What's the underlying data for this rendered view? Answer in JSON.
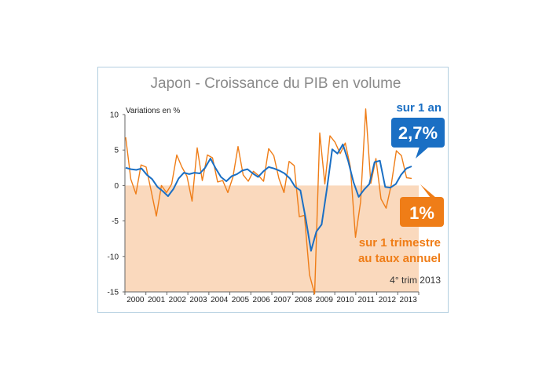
{
  "colors": {
    "annual": "#1a6fc4",
    "quarterly": "#ef7d17",
    "negative_fill": "#fad9bd",
    "frame": "#b3cfe0"
  },
  "chart_data": {
    "type": "line",
    "title": "Japon - Croissance du PIB en volume",
    "ylabel": "Variations en %",
    "xlabel": "",
    "ylim": [
      -15,
      10
    ],
    "yticks": [
      10,
      5,
      0,
      -5,
      -10,
      -15
    ],
    "years": [
      "2000",
      "2001",
      "2002",
      "2003",
      "2004",
      "2005",
      "2006",
      "2007",
      "2008",
      "2009",
      "2010",
      "2011",
      "2012",
      "2013"
    ],
    "grid": false,
    "series": [
      {
        "name": "sur 1 an",
        "values": [
          2.5,
          2.3,
          2.2,
          2.4,
          1.5,
          0.9,
          -0.2,
          -0.8,
          -1.5,
          -0.5,
          1.0,
          1.8,
          1.6,
          1.8,
          1.7,
          2.5,
          3.8,
          2.4,
          1.2,
          0.6,
          1.3,
          1.6,
          2.1,
          2.3,
          1.7,
          1.2,
          2.0,
          2.6,
          2.4,
          2.1,
          1.7,
          1.0,
          -0.2,
          -0.7,
          -4.7,
          -9.2,
          -6.5,
          -5.5,
          -0.5,
          5.1,
          4.5,
          5.8,
          3.5,
          0.5,
          -1.6,
          -0.6,
          0.2,
          3.3,
          3.5,
          -0.2,
          -0.3,
          0.2,
          1.5,
          2.4,
          2.7
        ]
      },
      {
        "name": "sur 1 trimestre au taux annuel",
        "values": [
          6.8,
          0.9,
          -1.2,
          2.9,
          2.6,
          -0.8,
          -4.3,
          0.0,
          -1.0,
          0.2,
          4.3,
          2.6,
          1.3,
          -2.2,
          5.3,
          0.7,
          4.3,
          3.9,
          0.5,
          0.7,
          -1.0,
          1.2,
          5.5,
          1.5,
          0.6,
          2.0,
          1.4,
          0.6,
          5.2,
          4.2,
          1.0,
          -1.0,
          3.4,
          2.8,
          -4.4,
          -4.2,
          -12.6,
          -15.3,
          7.4,
          0.2,
          7.0,
          6.1,
          4.5,
          6.0,
          2.6,
          -7.3,
          -2.3,
          10.8,
          0.3,
          3.8,
          -1.9,
          -3.2,
          0.1,
          4.9,
          4.2,
          1.1,
          1.0
        ]
      }
    ],
    "annotations": {
      "annual_label": "sur 1 an",
      "annual_value": "2,7%",
      "quarterly_label_line1": "sur 1 trimestre",
      "quarterly_label_line2": "au taux annuel",
      "quarterly_value": "1%",
      "period": "4° trim 2013"
    }
  }
}
